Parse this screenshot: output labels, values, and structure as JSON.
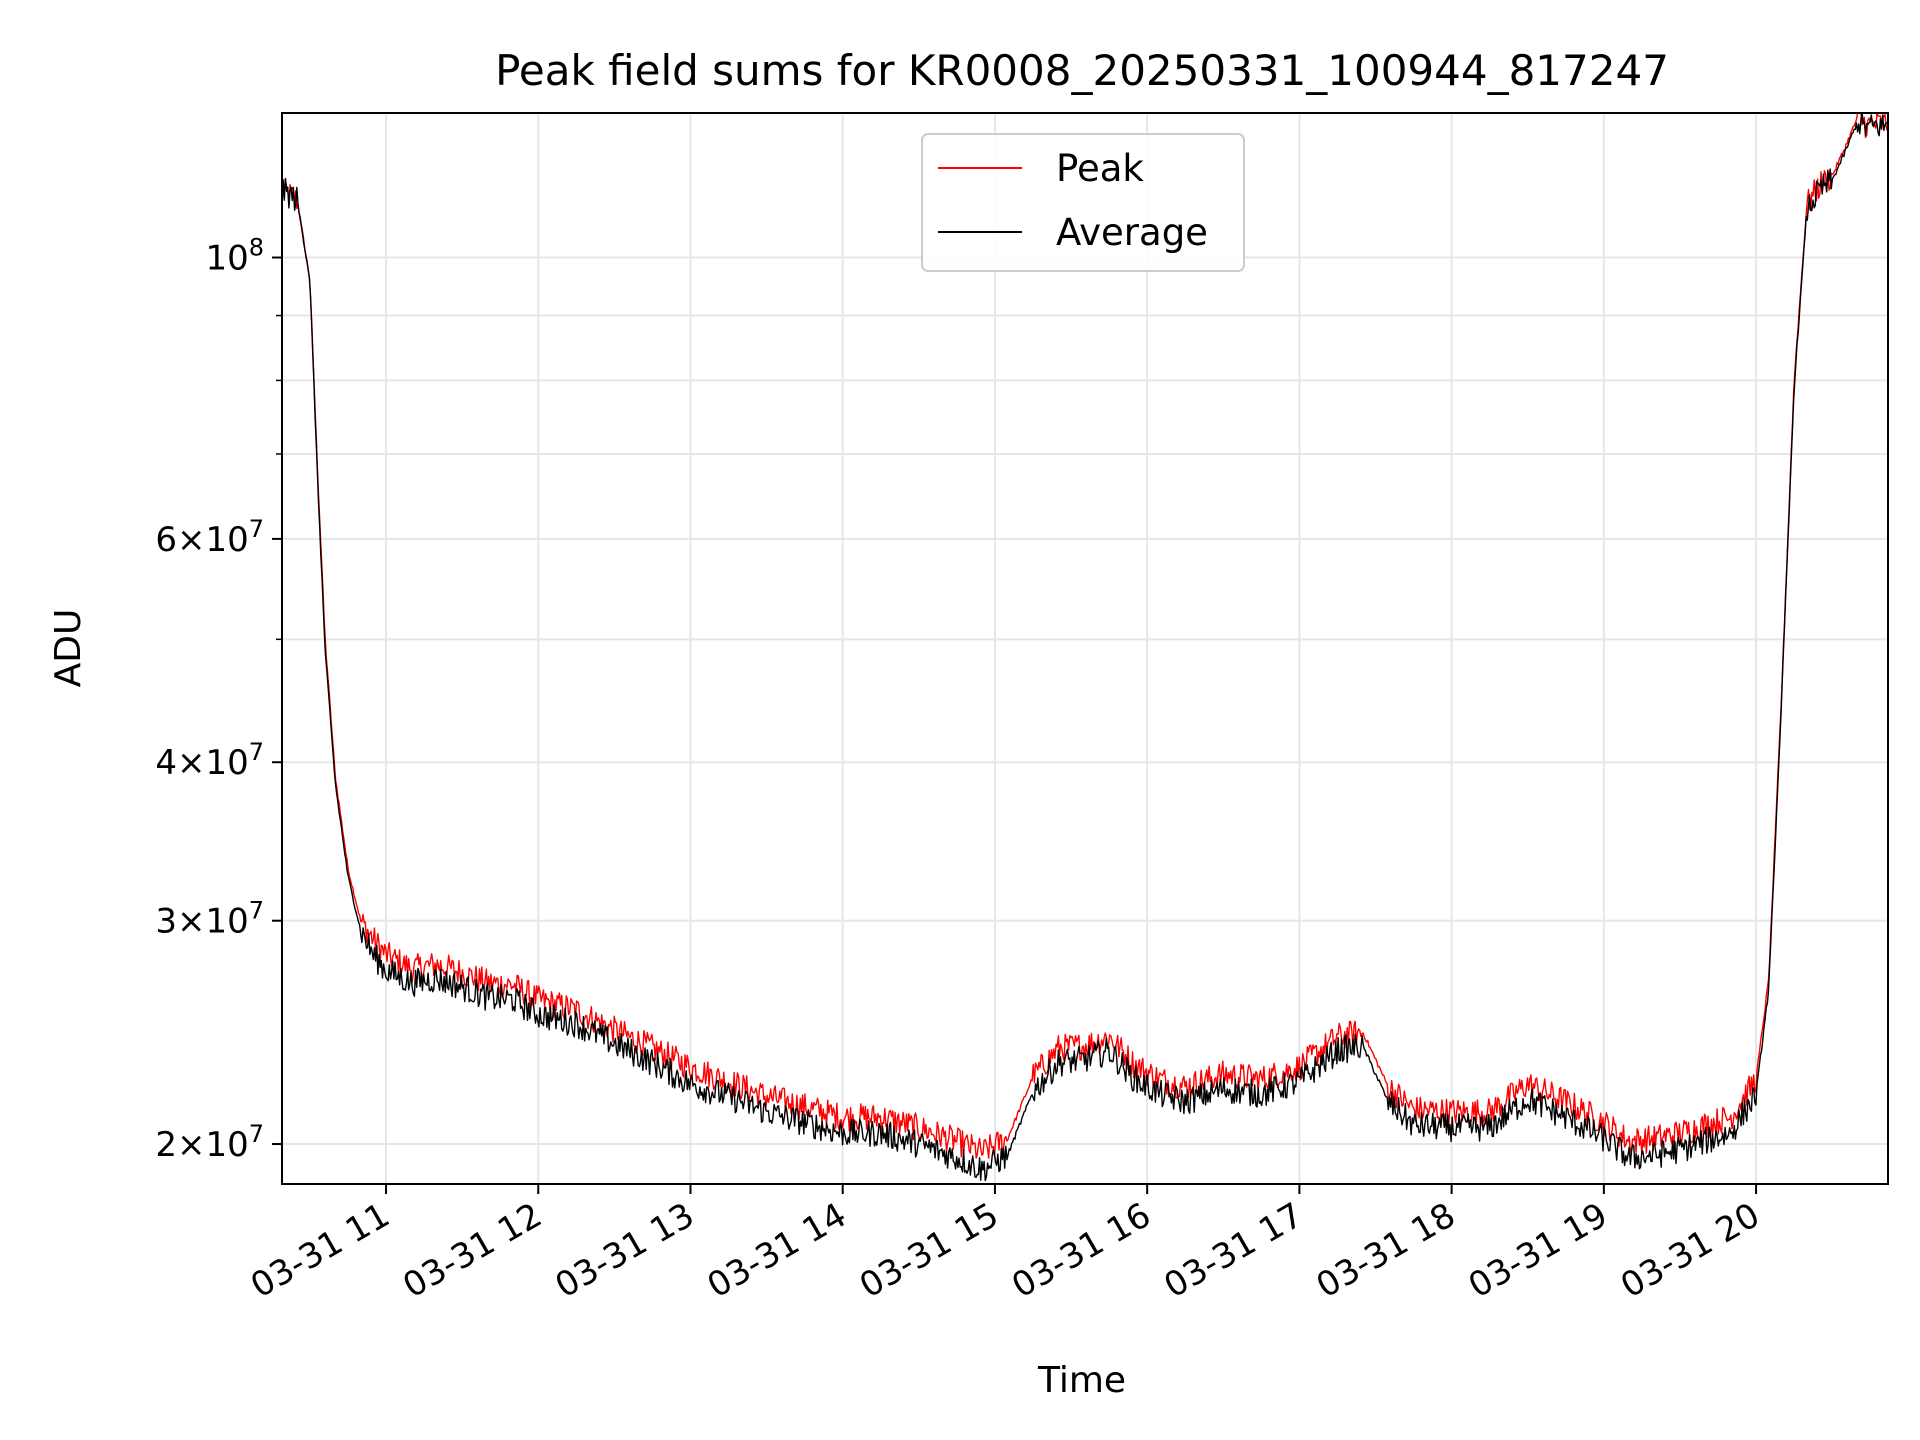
{
  "chart_data": {
    "type": "line",
    "title": "Peak field sums for KR0008_20250331_100944_817247",
    "xlabel": "Time",
    "ylabel": "ADU",
    "yscale": "log",
    "xlim": [
      "2025-03-31 10:19",
      "2025-03-31 20:52"
    ],
    "ylim": [
      18600000,
      130000000
    ],
    "grid": true,
    "legend_position": "top-center",
    "x_ticks": [
      "03-31 11",
      "03-31 12",
      "03-31 13",
      "03-31 14",
      "03-31 15",
      "03-31 16",
      "03-31 17",
      "03-31 18",
      "03-31 19",
      "03-31 20"
    ],
    "y_ticks": [
      {
        "value": 20000000,
        "mantissa": "2",
        "base": "10",
        "exp": "7"
      },
      {
        "value": 30000000,
        "mantissa": "3",
        "base": "10",
        "exp": "7"
      },
      {
        "value": 40000000,
        "mantissa": "4",
        "base": "10",
        "exp": "7"
      },
      {
        "value": 60000000,
        "mantissa": "6",
        "base": "10",
        "exp": "7"
      },
      {
        "value": 100000000,
        "mantissa": "",
        "base": "10",
        "exp": "8"
      }
    ],
    "y_minor_ticks": [
      50000000,
      70000000,
      80000000,
      90000000
    ],
    "series": [
      {
        "name": "Peak",
        "color": "#ff0000",
        "x": [
          "10:19",
          "10:25",
          "10:30",
          "10:33",
          "10:36",
          "10:40",
          "10:45",
          "10:50",
          "10:55",
          "11:00",
          "11:10",
          "11:20",
          "11:30",
          "11:40",
          "11:50",
          "12:00",
          "12:15",
          "12:30",
          "12:45",
          "13:00",
          "13:15",
          "13:30",
          "13:45",
          "14:00",
          "14:15",
          "14:30",
          "14:45",
          "14:55",
          "15:05",
          "15:15",
          "15:25",
          "15:35",
          "15:45",
          "15:55",
          "16:05",
          "16:15",
          "16:30",
          "16:45",
          "17:00",
          "17:15",
          "17:25",
          "17:35",
          "17:45",
          "18:00",
          "18:15",
          "18:30",
          "18:45",
          "19:00",
          "19:10",
          "19:20",
          "19:30",
          "19:40",
          "19:50",
          "20:00",
          "20:05",
          "20:10",
          "20:15",
          "20:20",
          "20:25",
          "20:30",
          "20:35",
          "20:40",
          "20:44",
          "20:47",
          "20:52"
        ],
        "y": [
          113000000,
          111000000,
          96000000,
          68000000,
          50000000,
          39000000,
          33000000,
          30000000,
          29000000,
          28200000,
          27500000,
          27700000,
          27300000,
          26800000,
          26700000,
          26000000,
          25500000,
          24600000,
          23800000,
          23000000,
          22400000,
          21800000,
          21400000,
          21000000,
          21000000,
          20600000,
          20100000,
          19700000,
          20200000,
          22600000,
          23800000,
          23900000,
          24300000,
          23100000,
          22500000,
          22200000,
          22700000,
          22500000,
          23000000,
          24300000,
          24500000,
          22200000,
          21300000,
          21200000,
          21200000,
          22300000,
          21600000,
          20800000,
          20100000,
          20200000,
          20400000,
          20700000,
          21000000,
          22500000,
          27000000,
          45000000,
          80000000,
          110000000,
          114000000,
          116000000,
          122000000,
          129000000,
          127000000,
          127500000,
          127500000
        ]
      },
      {
        "name": "Average",
        "color": "#000000",
        "x": [
          "10:19",
          "10:25",
          "10:30",
          "10:33",
          "10:36",
          "10:40",
          "10:45",
          "10:50",
          "10:55",
          "11:00",
          "11:10",
          "11:20",
          "11:30",
          "11:40",
          "11:50",
          "12:00",
          "12:15",
          "12:30",
          "12:45",
          "13:00",
          "13:15",
          "13:30",
          "13:45",
          "14:00",
          "14:15",
          "14:30",
          "14:45",
          "14:55",
          "15:05",
          "15:15",
          "15:25",
          "15:35",
          "15:45",
          "15:55",
          "16:05",
          "16:15",
          "16:30",
          "16:45",
          "17:00",
          "17:15",
          "17:25",
          "17:35",
          "17:45",
          "18:00",
          "18:15",
          "18:30",
          "18:45",
          "19:00",
          "19:10",
          "19:20",
          "19:30",
          "19:40",
          "19:50",
          "20:00",
          "20:05",
          "20:10",
          "20:15",
          "20:20",
          "20:25",
          "20:30",
          "20:35",
          "20:40",
          "20:44",
          "20:47",
          "20:52"
        ],
        "y": [
          113000000,
          111000000,
          96000000,
          67000000,
          49000000,
          38500000,
          32500000,
          29500000,
          28200000,
          27400000,
          26800000,
          27000000,
          26600000,
          26100000,
          26000000,
          25300000,
          24900000,
          24000000,
          23200000,
          22300000,
          21800000,
          21200000,
          20800000,
          20400000,
          20400000,
          20000000,
          19500000,
          19100000,
          19600000,
          22000000,
          23200000,
          23300000,
          23700000,
          22500000,
          21900000,
          21600000,
          22100000,
          21900000,
          22400000,
          23700000,
          23900000,
          21600000,
          20700000,
          20600000,
          20600000,
          21700000,
          21000000,
          20200000,
          19500000,
          19600000,
          19800000,
          20100000,
          20400000,
          21900000,
          26500000,
          44500000,
          79000000,
          109000000,
          113000000,
          115000000,
          121000000,
          128000000,
          126500000,
          127000000,
          127000000
        ]
      }
    ]
  }
}
